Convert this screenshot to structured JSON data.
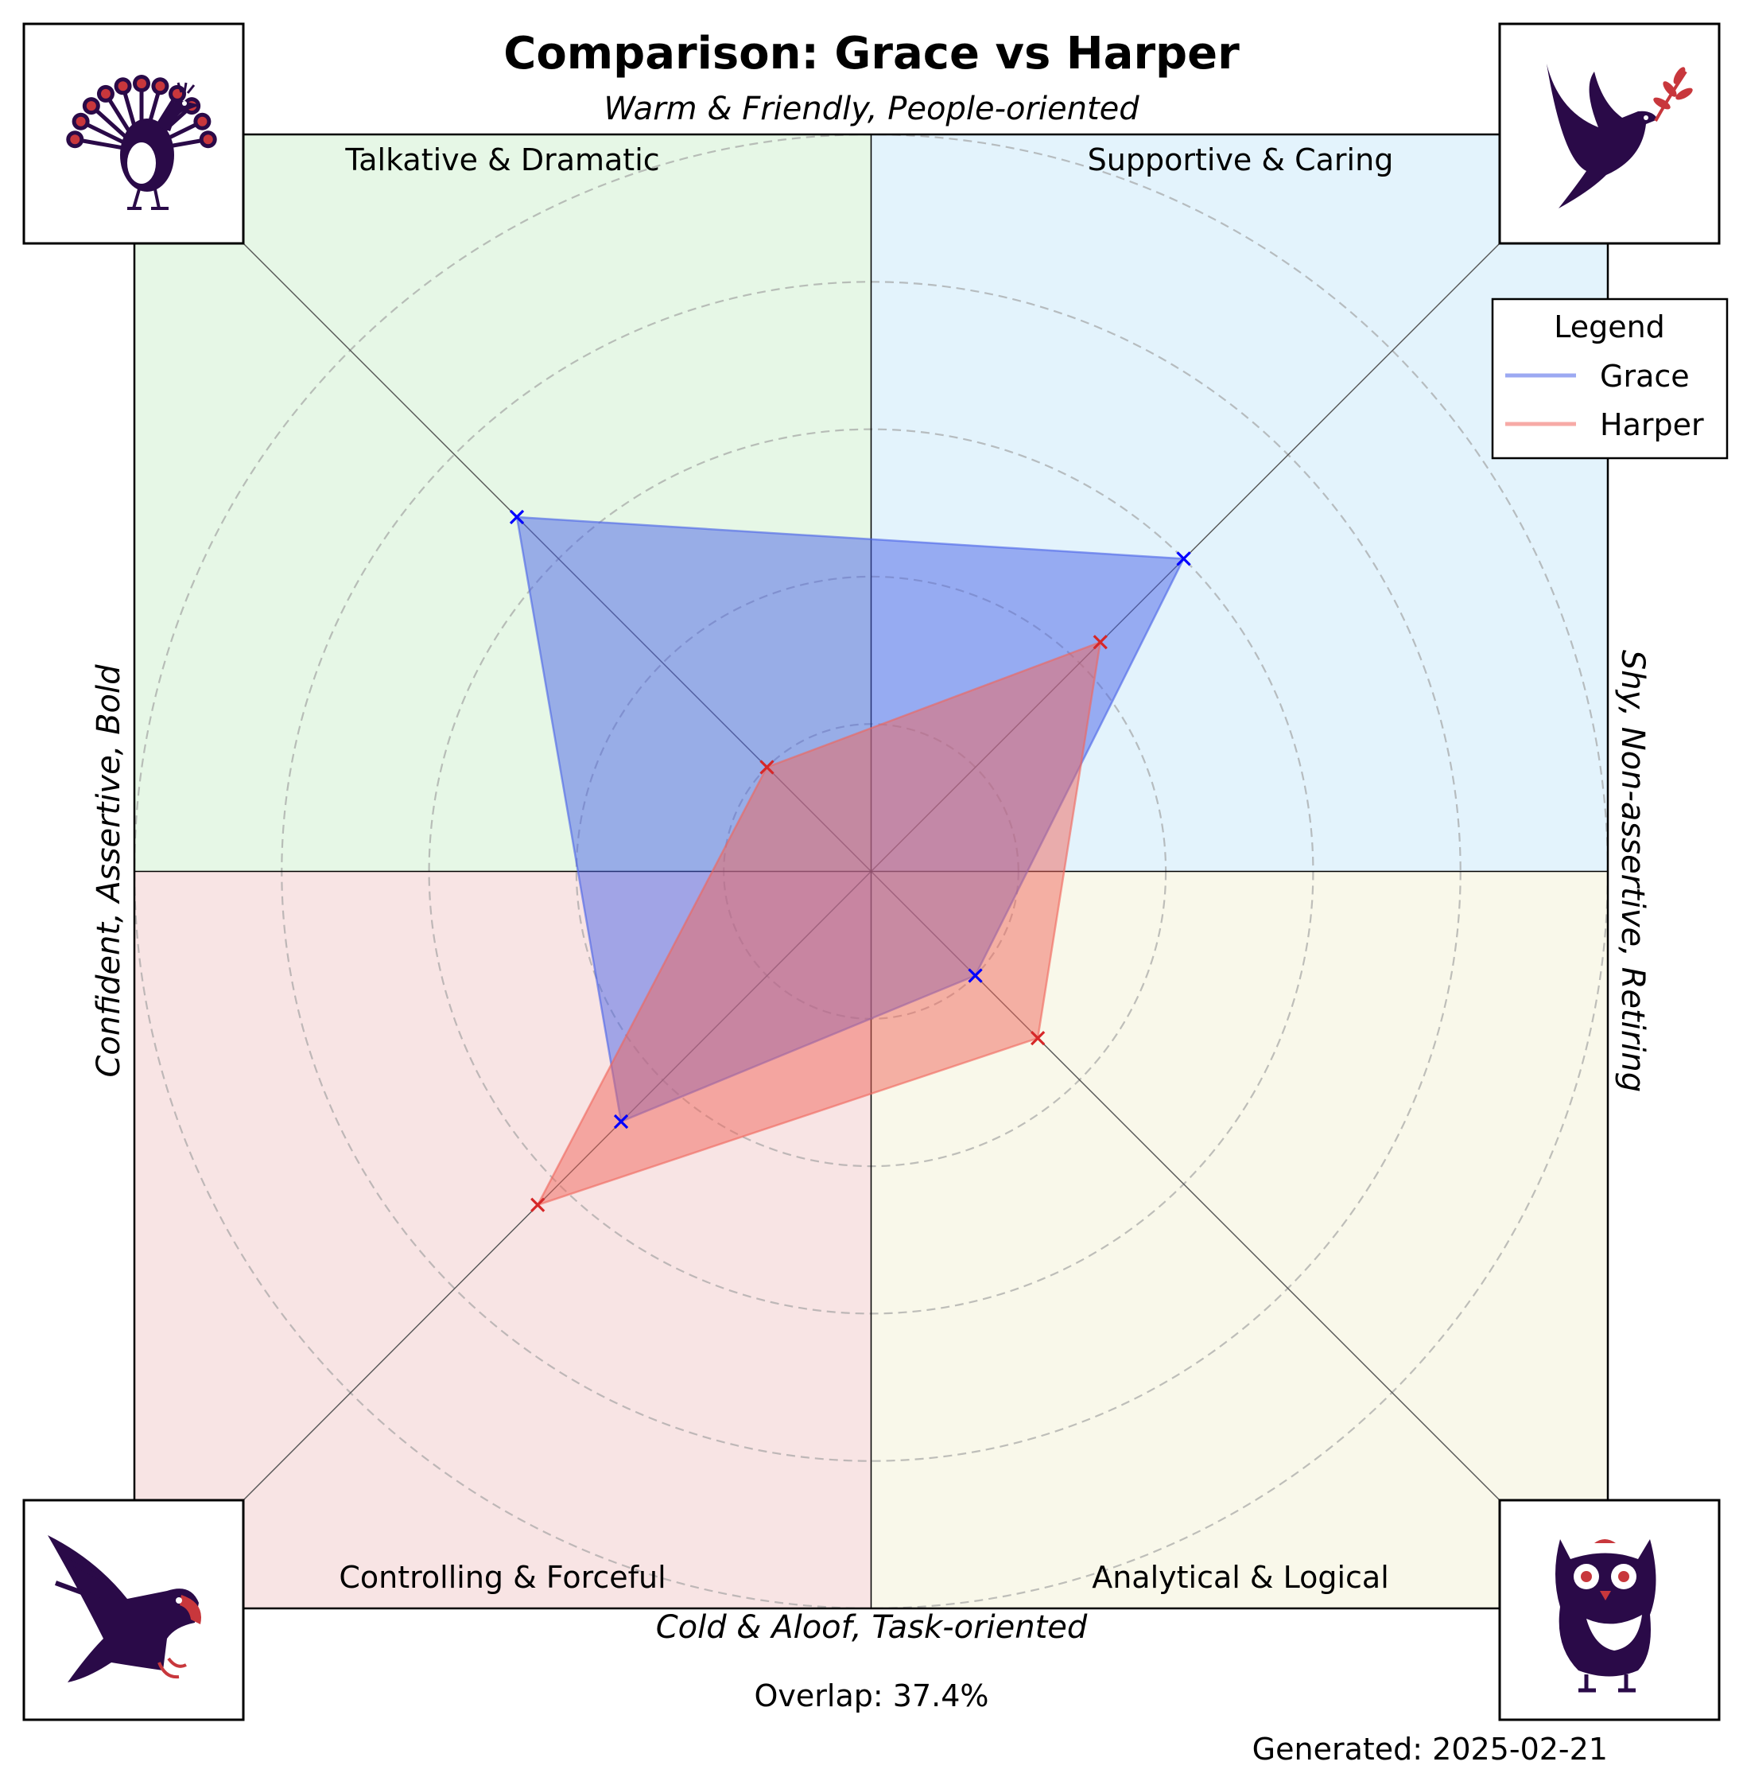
{
  "chart_data": {
    "type": "radar",
    "title": "Comparison: Grace vs Harper",
    "axis_labels": {
      "top": "Warm & Friendly, People-oriented",
      "bottom": "Cold & Aloof, Task-oriented",
      "left": "Confident, Assertive, Bold",
      "right": "Shy, Non-assertive, Retiring"
    },
    "quadrants": [
      {
        "id": "top-left",
        "label": "Talkative & Dramatic",
        "color": "#e6f7e6",
        "icon": "peacock-icon"
      },
      {
        "id": "top-right",
        "label": "Supportive & Caring",
        "color": "#e3f3fc",
        "icon": "dove-icon"
      },
      {
        "id": "bottom-left",
        "label": "Controlling & Forceful",
        "color": "#f8e4e4",
        "icon": "eagle-icon"
      },
      {
        "id": "bottom-right",
        "label": "Analytical & Logical",
        "color": "#f9f8ea",
        "icon": "owl-icon"
      }
    ],
    "axes": [
      "Talkative & Dramatic",
      "Supportive & Caring",
      "Analytical & Logical",
      "Controlling & Forceful"
    ],
    "range": [
      0,
      5
    ],
    "gridlines": [
      1,
      2,
      3,
      4,
      5
    ],
    "series": [
      {
        "name": "Grace",
        "values": [
          3.4,
          3.0,
          1.0,
          2.4
        ],
        "color": "#4a63e8",
        "marker_color": "#0000ff"
      },
      {
        "name": "Harper",
        "values": [
          1.0,
          2.2,
          1.6,
          3.2
        ],
        "color": "#f0655c",
        "marker_color": "#d62728"
      }
    ],
    "legend_title": "Legend",
    "legend_position": "top-right",
    "overlap_text": "Overlap: 37.4%",
    "generated_text": "Generated: 2025-02-21"
  },
  "icon_colors": {
    "body": "#2a0a48",
    "accent": "#c8373c"
  }
}
